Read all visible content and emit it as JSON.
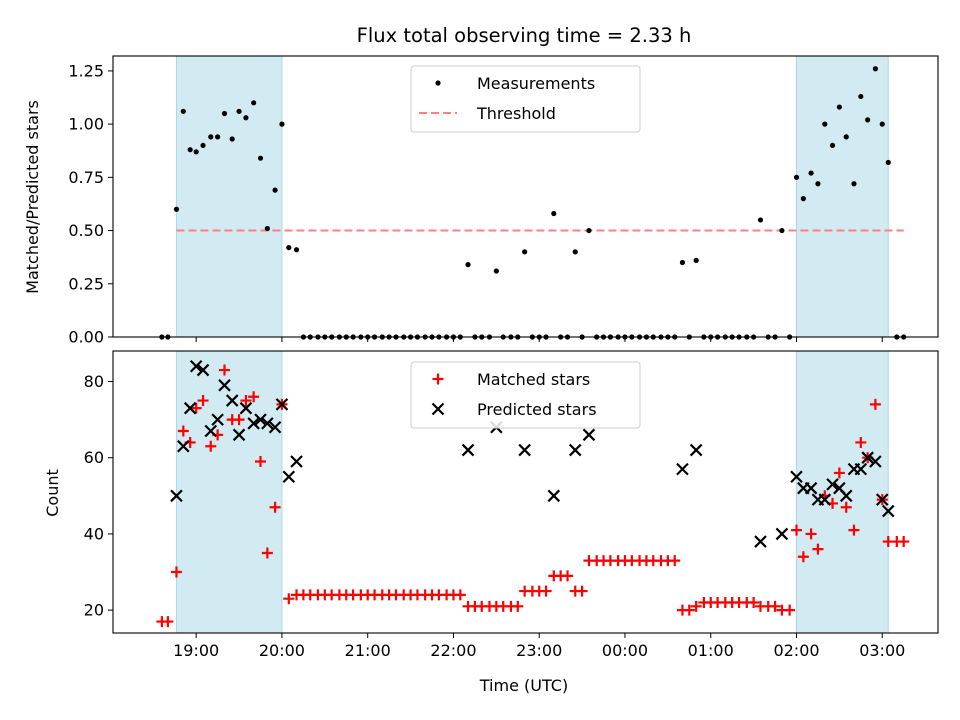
{
  "chart_data": [
    {
      "type": "scatter",
      "title": "Flux total observing time = 2.33 h",
      "xlabel": "",
      "ylabel": "Matched/Predicted stars",
      "ylim": [
        0,
        1.32
      ],
      "yticks": [
        "0.00",
        "0.25",
        "0.50",
        "0.75",
        "1.00",
        "1.25"
      ],
      "ytick_values": [
        0,
        0.25,
        0.5,
        0.75,
        1.0,
        1.25
      ],
      "xlim_hours": [
        18.03,
        27.65
      ],
      "legend": {
        "placement": "upper center",
        "entries": [
          "Measurements",
          "Threshold"
        ]
      },
      "threshold": {
        "name": "Threshold",
        "value": 0.5,
        "x_range_hours": [
          18.77,
          27.25
        ],
        "color": "#ff7f7f"
      },
      "shaded_intervals_hours": [
        [
          18.77,
          20.0
        ],
        [
          26.0,
          27.07
        ]
      ],
      "shade_color": "#add8e6",
      "series": [
        {
          "name": "Measurements",
          "color": "#000000",
          "x_hours": [
            18.6,
            18.67,
            18.77,
            18.85,
            18.93,
            19.0,
            19.08,
            19.17,
            19.25,
            19.33,
            19.42,
            19.5,
            19.58,
            19.67,
            19.75,
            19.83,
            19.92,
            20.0,
            20.08,
            20.17,
            20.25,
            20.33,
            20.42,
            20.5,
            20.58,
            20.67,
            20.75,
            20.83,
            20.92,
            21.0,
            21.08,
            21.17,
            21.25,
            21.33,
            21.42,
            21.5,
            21.58,
            21.67,
            21.75,
            21.83,
            21.92,
            22.0,
            22.08,
            22.17,
            22.25,
            22.33,
            22.42,
            22.5,
            22.58,
            22.67,
            22.75,
            22.83,
            22.92,
            23.0,
            23.08,
            23.17,
            23.25,
            23.33,
            23.42,
            23.5,
            23.58,
            23.67,
            23.75,
            23.83,
            23.92,
            24.0,
            24.08,
            24.17,
            24.25,
            24.33,
            24.42,
            24.5,
            24.58,
            24.67,
            24.75,
            24.83,
            24.92,
            25.0,
            25.08,
            25.17,
            25.25,
            25.33,
            25.42,
            25.5,
            25.58,
            25.67,
            25.75,
            25.83,
            25.92,
            26.0,
            26.08,
            26.17,
            26.25,
            26.33,
            26.42,
            26.5,
            26.58,
            26.67,
            26.75,
            26.83,
            26.92,
            27.0,
            27.07,
            27.17,
            27.25
          ],
          "y": [
            0,
            0,
            0.6,
            1.06,
            0.88,
            0.87,
            0.9,
            0.94,
            0.94,
            1.05,
            0.93,
            1.06,
            1.03,
            1.1,
            0.84,
            0.51,
            0.69,
            1.0,
            0.42,
            0.41,
            0,
            0,
            0,
            0,
            0,
            0,
            0,
            0,
            0,
            0,
            0,
            0,
            0,
            0,
            0,
            0,
            0,
            0,
            0,
            0,
            0,
            0,
            0,
            0.34,
            0,
            0,
            0,
            0.31,
            0,
            0,
            0,
            0.4,
            0,
            0,
            0,
            0.58,
            0,
            0,
            0.4,
            0,
            0.5,
            0,
            0,
            0,
            0,
            0,
            0,
            0,
            0,
            0,
            0,
            0,
            0,
            0.35,
            0,
            0.36,
            0,
            0,
            0,
            0,
            0,
            0,
            0,
            0,
            0.55,
            0,
            0,
            0.5,
            0,
            0.75,
            0.65,
            0.77,
            0.72,
            1.0,
            0.9,
            1.08,
            0.94,
            0.72,
            1.13,
            1.02,
            1.26,
            1.0,
            0.82,
            0,
            0
          ]
        }
      ]
    },
    {
      "type": "scatter",
      "title": "",
      "xlabel": "Time (UTC)",
      "ylabel": "Count",
      "ylim": [
        14,
        88
      ],
      "yticks": [
        "20",
        "40",
        "60",
        "80"
      ],
      "ytick_values": [
        20,
        40,
        60,
        80
      ],
      "xlim_hours": [
        18.03,
        27.65
      ],
      "xticks": [
        "19:00",
        "20:00",
        "21:00",
        "22:00",
        "23:00",
        "00:00",
        "01:00",
        "02:00",
        "03:00"
      ],
      "xtick_hours": [
        19,
        20,
        21,
        22,
        23,
        24,
        25,
        26,
        27
      ],
      "legend": {
        "placement": "upper center",
        "entries": [
          "Matched stars",
          "Predicted stars"
        ]
      },
      "shaded_intervals_hours": [
        [
          18.77,
          20.0
        ],
        [
          26.0,
          27.07
        ]
      ],
      "shade_color": "#add8e6",
      "series": [
        {
          "name": "Matched stars",
          "marker": "plus",
          "color": "#ff0000",
          "x_hours": [
            18.6,
            18.67,
            18.77,
            18.85,
            18.93,
            19.0,
            19.08,
            19.17,
            19.25,
            19.33,
            19.42,
            19.5,
            19.58,
            19.67,
            19.75,
            19.83,
            19.92,
            20.0,
            20.08,
            20.17,
            20.25,
            20.33,
            20.42,
            20.5,
            20.58,
            20.67,
            20.75,
            20.83,
            20.92,
            21.0,
            21.08,
            21.17,
            21.25,
            21.33,
            21.42,
            21.5,
            21.58,
            21.67,
            21.75,
            21.83,
            21.92,
            22.0,
            22.08,
            22.17,
            22.25,
            22.33,
            22.42,
            22.5,
            22.58,
            22.67,
            22.75,
            22.83,
            22.92,
            23.0,
            23.08,
            23.17,
            23.25,
            23.33,
            23.42,
            23.5,
            23.58,
            23.67,
            23.75,
            23.83,
            23.92,
            24.0,
            24.08,
            24.17,
            24.25,
            24.33,
            24.42,
            24.5,
            24.58,
            24.67,
            24.75,
            24.83,
            24.92,
            25.0,
            25.08,
            25.17,
            25.25,
            25.33,
            25.42,
            25.5,
            25.58,
            25.67,
            25.75,
            25.83,
            25.92,
            26.0,
            26.08,
            26.17,
            26.25,
            26.33,
            26.42,
            26.5,
            26.58,
            26.67,
            26.75,
            26.83,
            26.92,
            27.0,
            27.07,
            27.17,
            27.25
          ],
          "y": [
            17,
            17,
            30,
            67,
            64,
            73,
            75,
            63,
            66,
            83,
            70,
            70,
            75,
            76,
            59,
            35,
            47,
            74,
            23,
            24,
            24,
            24,
            24,
            24,
            24,
            24,
            24,
            24,
            24,
            24,
            24,
            24,
            24,
            24,
            24,
            24,
            24,
            24,
            24,
            24,
            24,
            24,
            24,
            21,
            21,
            21,
            21,
            21,
            21,
            21,
            21,
            25,
            25,
            25,
            25,
            29,
            29,
            29,
            25,
            25,
            33,
            33,
            33,
            33,
            33,
            33,
            33,
            33,
            33,
            33,
            33,
            33,
            33,
            20,
            20,
            21,
            22,
            22,
            22,
            22,
            22,
            22,
            22,
            22,
            21,
            21,
            21,
            20,
            20,
            41,
            34,
            40,
            36,
            50,
            48,
            56,
            47,
            41,
            64,
            60,
            74,
            49,
            38,
            38,
            38
          ]
        },
        {
          "name": "Predicted stars",
          "marker": "x",
          "color": "#000000",
          "x_hours": [
            18.77,
            18.85,
            18.93,
            19.0,
            19.08,
            19.17,
            19.25,
            19.33,
            19.42,
            19.5,
            19.58,
            19.67,
            19.75,
            19.83,
            19.92,
            20.0,
            20.08,
            20.17,
            22.17,
            22.5,
            22.83,
            23.17,
            23.42,
            23.58,
            24.67,
            24.83,
            25.58,
            25.83,
            26.0,
            26.08,
            26.17,
            26.25,
            26.33,
            26.42,
            26.5,
            26.58,
            26.67,
            26.75,
            26.83,
            26.92,
            27.0,
            27.07
          ],
          "y": [
            50,
            63,
            73,
            84,
            83,
            67,
            70,
            79,
            75,
            66,
            73,
            69,
            70,
            69,
            68,
            74,
            55,
            59,
            62,
            68,
            62,
            50,
            62,
            66,
            57,
            62,
            38,
            40,
            55,
            52,
            52,
            49,
            49,
            53,
            52,
            50,
            57,
            57,
            60,
            59,
            49,
            46
          ]
        }
      ]
    }
  ]
}
